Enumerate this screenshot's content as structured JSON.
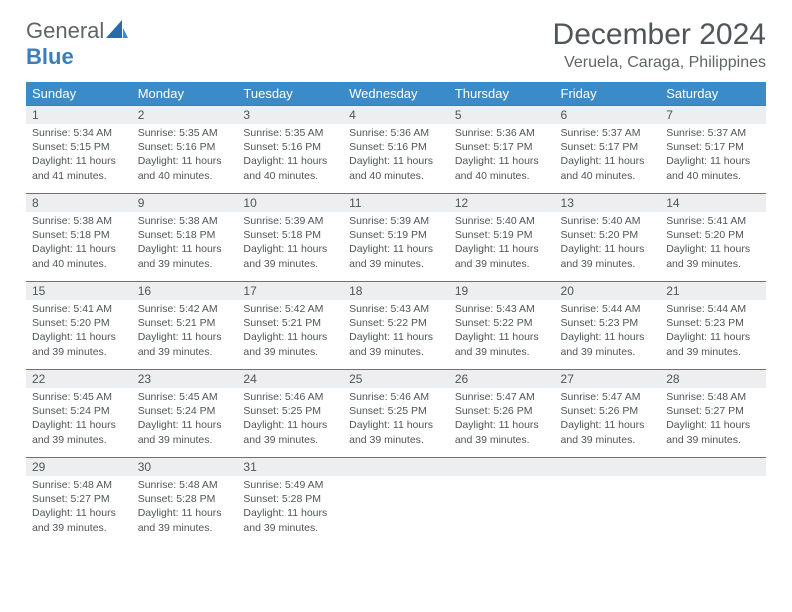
{
  "logo": {
    "text1": "General",
    "text2": "Blue"
  },
  "title": "December 2024",
  "location": "Veruela, Caraga, Philippines",
  "colors": {
    "header_bg": "#3b8bc8",
    "header_text": "#ffffff",
    "daynum_bg": "#eceeef",
    "border": "#3b7fba",
    "logo_gray": "#606568",
    "logo_blue": "#3b7fba",
    "text": "#505558"
  },
  "weekdays": [
    "Sunday",
    "Monday",
    "Tuesday",
    "Wednesday",
    "Thursday",
    "Friday",
    "Saturday"
  ],
  "weeks": [
    [
      {
        "n": "1",
        "sr": "5:34 AM",
        "ss": "5:15 PM",
        "dl": "11 hours and 41 minutes."
      },
      {
        "n": "2",
        "sr": "5:35 AM",
        "ss": "5:16 PM",
        "dl": "11 hours and 40 minutes."
      },
      {
        "n": "3",
        "sr": "5:35 AM",
        "ss": "5:16 PM",
        "dl": "11 hours and 40 minutes."
      },
      {
        "n": "4",
        "sr": "5:36 AM",
        "ss": "5:16 PM",
        "dl": "11 hours and 40 minutes."
      },
      {
        "n": "5",
        "sr": "5:36 AM",
        "ss": "5:17 PM",
        "dl": "11 hours and 40 minutes."
      },
      {
        "n": "6",
        "sr": "5:37 AM",
        "ss": "5:17 PM",
        "dl": "11 hours and 40 minutes."
      },
      {
        "n": "7",
        "sr": "5:37 AM",
        "ss": "5:17 PM",
        "dl": "11 hours and 40 minutes."
      }
    ],
    [
      {
        "n": "8",
        "sr": "5:38 AM",
        "ss": "5:18 PM",
        "dl": "11 hours and 40 minutes."
      },
      {
        "n": "9",
        "sr": "5:38 AM",
        "ss": "5:18 PM",
        "dl": "11 hours and 39 minutes."
      },
      {
        "n": "10",
        "sr": "5:39 AM",
        "ss": "5:18 PM",
        "dl": "11 hours and 39 minutes."
      },
      {
        "n": "11",
        "sr": "5:39 AM",
        "ss": "5:19 PM",
        "dl": "11 hours and 39 minutes."
      },
      {
        "n": "12",
        "sr": "5:40 AM",
        "ss": "5:19 PM",
        "dl": "11 hours and 39 minutes."
      },
      {
        "n": "13",
        "sr": "5:40 AM",
        "ss": "5:20 PM",
        "dl": "11 hours and 39 minutes."
      },
      {
        "n": "14",
        "sr": "5:41 AM",
        "ss": "5:20 PM",
        "dl": "11 hours and 39 minutes."
      }
    ],
    [
      {
        "n": "15",
        "sr": "5:41 AM",
        "ss": "5:20 PM",
        "dl": "11 hours and 39 minutes."
      },
      {
        "n": "16",
        "sr": "5:42 AM",
        "ss": "5:21 PM",
        "dl": "11 hours and 39 minutes."
      },
      {
        "n": "17",
        "sr": "5:42 AM",
        "ss": "5:21 PM",
        "dl": "11 hours and 39 minutes."
      },
      {
        "n": "18",
        "sr": "5:43 AM",
        "ss": "5:22 PM",
        "dl": "11 hours and 39 minutes."
      },
      {
        "n": "19",
        "sr": "5:43 AM",
        "ss": "5:22 PM",
        "dl": "11 hours and 39 minutes."
      },
      {
        "n": "20",
        "sr": "5:44 AM",
        "ss": "5:23 PM",
        "dl": "11 hours and 39 minutes."
      },
      {
        "n": "21",
        "sr": "5:44 AM",
        "ss": "5:23 PM",
        "dl": "11 hours and 39 minutes."
      }
    ],
    [
      {
        "n": "22",
        "sr": "5:45 AM",
        "ss": "5:24 PM",
        "dl": "11 hours and 39 minutes."
      },
      {
        "n": "23",
        "sr": "5:45 AM",
        "ss": "5:24 PM",
        "dl": "11 hours and 39 minutes."
      },
      {
        "n": "24",
        "sr": "5:46 AM",
        "ss": "5:25 PM",
        "dl": "11 hours and 39 minutes."
      },
      {
        "n": "25",
        "sr": "5:46 AM",
        "ss": "5:25 PM",
        "dl": "11 hours and 39 minutes."
      },
      {
        "n": "26",
        "sr": "5:47 AM",
        "ss": "5:26 PM",
        "dl": "11 hours and 39 minutes."
      },
      {
        "n": "27",
        "sr": "5:47 AM",
        "ss": "5:26 PM",
        "dl": "11 hours and 39 minutes."
      },
      {
        "n": "28",
        "sr": "5:48 AM",
        "ss": "5:27 PM",
        "dl": "11 hours and 39 minutes."
      }
    ],
    [
      {
        "n": "29",
        "sr": "5:48 AM",
        "ss": "5:27 PM",
        "dl": "11 hours and 39 minutes."
      },
      {
        "n": "30",
        "sr": "5:48 AM",
        "ss": "5:28 PM",
        "dl": "11 hours and 39 minutes."
      },
      {
        "n": "31",
        "sr": "5:49 AM",
        "ss": "5:28 PM",
        "dl": "11 hours and 39 minutes."
      },
      null,
      null,
      null,
      null
    ]
  ],
  "labels": {
    "sunrise": "Sunrise:",
    "sunset": "Sunset:",
    "daylight": "Daylight:"
  }
}
